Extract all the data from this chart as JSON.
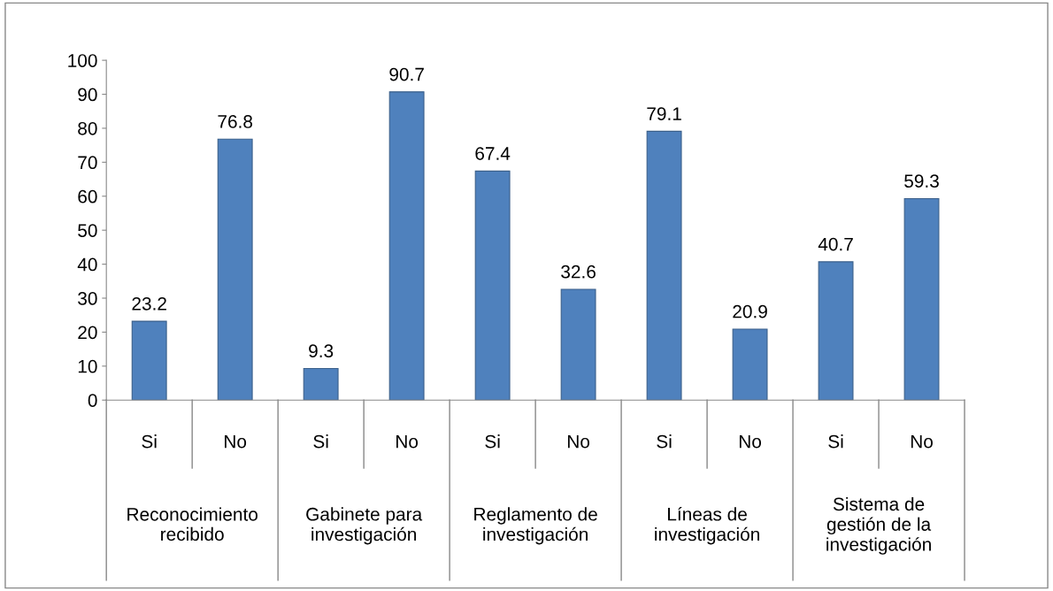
{
  "chart_data": {
    "type": "bar",
    "categories": [
      "Si",
      "No",
      "Si",
      "No",
      "Si",
      "No",
      "Si",
      "No",
      "Si",
      "No"
    ],
    "values": [
      23.2,
      76.8,
      9.3,
      90.7,
      67.4,
      32.6,
      79.1,
      20.9,
      40.7,
      59.3
    ],
    "color": "#4f81bd",
    "data_labels": true,
    "ylim": [
      0,
      100
    ],
    "yticks": [
      0,
      10,
      20,
      30,
      40,
      50,
      60,
      70,
      80,
      90,
      100
    ],
    "grid": false,
    "legend": false,
    "annotations": [
      "Reconocimiento\nrecibido",
      "Gabinete para\ninvestigación",
      "Reglamento de\ninvestigación",
      "Líneas de\ninvestigación",
      "Sistema de\ngestión de la\ninvestigación"
    ]
  }
}
